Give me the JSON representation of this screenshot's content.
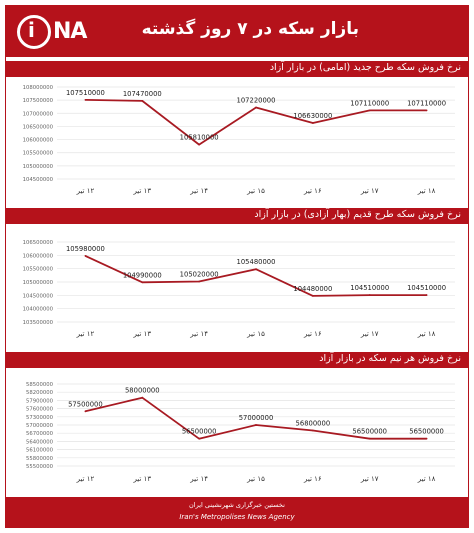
{
  "header": {
    "title": "بازار سکه در ۷ روز گذشته",
    "logo_text": "NA",
    "logo_letter": "i"
  },
  "footer": {
    "line1": "نخستین خبرگزاری شهرنشینی ایران",
    "line2": "Iran's Metropolises News Agency"
  },
  "colors": {
    "accent": "#b5121b",
    "line": "#a81a22",
    "grid": "#e4e4e4",
    "text": "#333333"
  },
  "chart_data": [
    {
      "type": "line",
      "title": "نرخ فروش سکه طرح جدید (امامی) در بازار آزاد",
      "categories": [
        "۱۲ تیر",
        "۱۳ تیر",
        "۱۴ تیر",
        "۱۵ تیر",
        "۱۶ تیر",
        "۱۷ تیر",
        "۱۸ تیر"
      ],
      "values": [
        107510000,
        107470000,
        105810000,
        107220000,
        106630000,
        107110000,
        107110000
      ],
      "value_labels": [
        "107510000",
        "107470000",
        "105810000",
        "107220000",
        "106630000",
        "107110000",
        "107110000"
      ],
      "yticks": [
        104500000,
        105000000,
        105500000,
        106000000,
        106500000,
        107000000,
        107500000,
        108000000
      ],
      "ytick_labels": [
        "104500000",
        "105000000",
        "105500000",
        "106000000",
        "106500000",
        "107000000",
        "107500000",
        "108000000"
      ],
      "ylim": [
        104500000,
        108000000
      ],
      "grid": true
    },
    {
      "type": "line",
      "title": "نرخ فروش سکه طرح قدیم (بهار آزادی) در بازار آزاد",
      "categories": [
        "۱۲ تیر",
        "۱۳ تیر",
        "۱۴ تیر",
        "۱۵ تیر",
        "۱۶ تیر",
        "۱۷ تیر",
        "۱۸ تیر"
      ],
      "values": [
        105980000,
        104990000,
        105020000,
        105480000,
        104480000,
        104510000,
        104510000
      ],
      "value_labels": [
        "105980000",
        "104990000",
        "105020000",
        "105480000",
        "104480000",
        "104510000",
        "104510000"
      ],
      "yticks": [
        103500000,
        104000000,
        104500000,
        105000000,
        105500000,
        106000000,
        106500000
      ],
      "ytick_labels": [
        "103500000",
        "104000000",
        "104500000",
        "105000000",
        "105500000",
        "106000000",
        "106500000"
      ],
      "ylim": [
        103500000,
        106500000
      ],
      "grid": true
    },
    {
      "type": "line",
      "title": "نرخ فروش هر نیم سکه در بازار آزاد",
      "categories": [
        "۱۲ تیر",
        "۱۳ تیر",
        "۱۴ تیر",
        "۱۵ تیر",
        "۱۶ تیر",
        "۱۷ تیر",
        "۱۸ تیر"
      ],
      "values": [
        57500000,
        58000000,
        56500000,
        57000000,
        56800000,
        56500000,
        56500000
      ],
      "value_labels": [
        "57500000",
        "58000000",
        "56500000",
        "57000000",
        "56800000",
        "56500000",
        "56500000"
      ],
      "yticks": [
        55500000,
        55800000,
        56100000,
        56400000,
        56700000,
        57000000,
        57300000,
        57600000,
        57900000,
        58200000,
        58500000
      ],
      "ytick_labels": [
        "55500000",
        "55800000",
        "56100000",
        "56400000",
        "56700000",
        "57000000",
        "57300000",
        "57600000",
        "57900000",
        "58200000",
        "58500000"
      ],
      "ylim": [
        55500000,
        58500000
      ],
      "grid": true
    }
  ]
}
